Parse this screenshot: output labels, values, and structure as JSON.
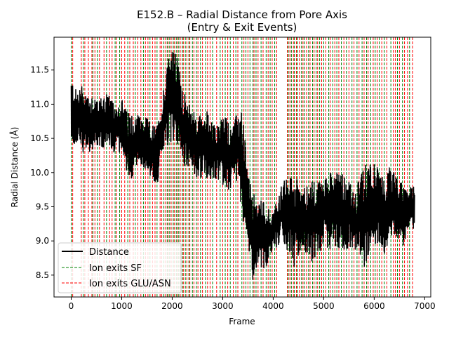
{
  "chart_data": {
    "type": "line",
    "title": "E152.B – Radial Distance from Pore Axis",
    "subtitle": "(Entry & Exit Events)",
    "xlabel": "Frame",
    "ylabel": "Radial Distance (Å)",
    "xlim": [
      -340,
      7120
    ],
    "ylim": [
      8.18,
      11.98
    ],
    "x_ticks": [
      0,
      1000,
      2000,
      3000,
      4000,
      5000,
      6000,
      7000
    ],
    "x_tick_labels": [
      "0",
      "1000",
      "2000",
      "3000",
      "4000",
      "5000",
      "6000",
      "7000"
    ],
    "y_ticks": [
      8.5,
      9.0,
      9.5,
      10.0,
      10.5,
      11.0,
      11.5
    ],
    "y_tick_labels": [
      "8.5",
      "9.0",
      "9.5",
      "10.0",
      "10.5",
      "11.0",
      "11.5"
    ],
    "grid": false,
    "legend_position": "lower-left",
    "series": [
      {
        "name": "Distance",
        "color": "#000000",
        "style": "solid",
        "frame_count": 6800,
        "envelope_x": [
          0,
          100,
          200,
          300,
          400,
          500,
          600,
          700,
          800,
          900,
          1000,
          1100,
          1200,
          1300,
          1400,
          1500,
          1600,
          1700,
          1800,
          1900,
          2000,
          2100,
          2200,
          2300,
          2400,
          2500,
          2600,
          2700,
          2800,
          2900,
          3000,
          3100,
          3200,
          3300,
          3400,
          3500,
          3600,
          3700,
          3800,
          3900,
          4000,
          4100,
          4200,
          4300,
          4400,
          4500,
          4600,
          4700,
          4800,
          4900,
          5000,
          5100,
          5200,
          5300,
          5400,
          5500,
          5600,
          5700,
          5800,
          5900,
          6000,
          6100,
          6200,
          6300,
          6400,
          6500,
          6600,
          6700,
          6800
        ],
        "envelope_low": [
          10.4,
          10.4,
          10.3,
          10.3,
          10.3,
          10.4,
          10.3,
          10.35,
          10.3,
          10.3,
          10.2,
          10.0,
          9.9,
          10.1,
          10.1,
          10.0,
          9.9,
          9.8,
          10.2,
          10.3,
          10.4,
          10.4,
          10.1,
          10.1,
          10.0,
          9.9,
          9.9,
          9.9,
          9.9,
          9.9,
          9.8,
          9.7,
          9.8,
          9.9,
          9.3,
          9.0,
          8.4,
          8.6,
          8.6,
          8.6,
          8.9,
          8.9,
          9.0,
          8.8,
          8.5,
          8.8,
          8.9,
          8.7,
          8.7,
          8.7,
          8.9,
          8.9,
          8.8,
          8.9,
          8.8,
          8.9,
          8.8,
          8.8,
          8.6,
          8.8,
          8.9,
          9.0,
          8.8,
          9.0,
          9.1,
          9.0,
          8.9,
          9.1,
          9.2
        ],
        "envelope_high": [
          11.4,
          11.2,
          11.3,
          11.2,
          11.15,
          11.15,
          11.1,
          11.2,
          11.05,
          11.0,
          11.1,
          10.9,
          10.9,
          10.9,
          10.8,
          10.8,
          10.7,
          10.7,
          11.0,
          11.8,
          11.8,
          11.7,
          11.3,
          11.0,
          11.0,
          10.8,
          10.9,
          10.9,
          10.7,
          10.7,
          10.9,
          10.8,
          10.7,
          10.9,
          10.9,
          10.0,
          9.7,
          9.6,
          9.6,
          9.5,
          9.4,
          9.7,
          9.9,
          9.9,
          10.0,
          9.9,
          9.8,
          9.8,
          9.9,
          9.9,
          9.9,
          10.1,
          10.1,
          10.1,
          10.0,
          9.9,
          9.7,
          9.9,
          10.1,
          10.2,
          10.2,
          10.0,
          9.9,
          10.1,
          10.0,
          9.9,
          9.8,
          9.8,
          9.8
        ]
      },
      {
        "name": "Ion exits SF",
        "color": "#008000",
        "style": "dashed",
        "x": [
          0,
          240,
          430,
          520,
          700,
          870,
          960,
          1120,
          1270,
          1430,
          1560,
          1700,
          1830,
          1900,
          1950,
          2020,
          2080,
          2130,
          2200,
          2260,
          2330,
          2400,
          2480,
          2560,
          2660,
          2800,
          2950,
          3050,
          3150,
          3260,
          3380,
          3460,
          3540,
          3600,
          3660,
          3760,
          3860,
          3940,
          4030,
          4300,
          4360,
          4420,
          4480,
          4560,
          4620,
          4700,
          4780,
          4850,
          4920,
          5000,
          5100,
          5180,
          5260,
          5350,
          5450,
          5560,
          5660,
          5760,
          5850,
          5930,
          6020,
          6100,
          6200,
          6330,
          6460,
          6560,
          6700
        ]
      },
      {
        "name": "Ion exits GLU/ASN",
        "color": "#ff0000",
        "style": "dashed",
        "x": [
          30,
          200,
          270,
          340,
          410,
          470,
          560,
          650,
          760,
          810,
          900,
          1000,
          1060,
          1160,
          1230,
          1320,
          1380,
          1470,
          1520,
          1610,
          1660,
          1760,
          1790,
          1860,
          1920,
          1980,
          2040,
          2100,
          2160,
          2220,
          2290,
          2350,
          2430,
          2510,
          2600,
          2700,
          2750,
          2880,
          3000,
          3100,
          3210,
          3300,
          3420,
          3500,
          3620,
          3700,
          3800,
          3900,
          3980,
          4070,
          4280,
          4330,
          4400,
          4460,
          4520,
          4590,
          4660,
          4730,
          4810,
          4880,
          4960,
          5040,
          5130,
          5220,
          5300,
          5400,
          5500,
          5600,
          5700,
          5800,
          5880,
          5980,
          6060,
          6150,
          6250,
          6380,
          6420,
          6500,
          6600,
          6660,
          6760
        ]
      }
    ]
  }
}
